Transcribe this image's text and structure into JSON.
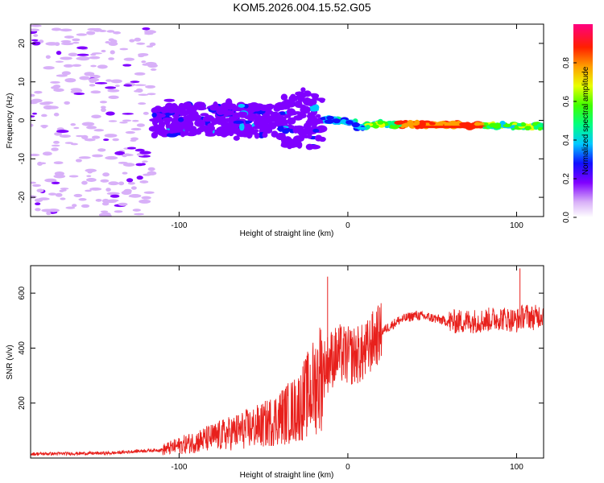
{
  "title": "KOM5.2026.004.15.52.G05",
  "chart_data": [
    {
      "type": "heatmap",
      "name": "spectrogram",
      "xlabel": "Height of straight line (km)",
      "ylabel": "Frequency (Hz)",
      "xlim": [
        -188,
        116
      ],
      "ylim": [
        -25,
        25
      ],
      "xticks": [
        -100,
        0,
        100
      ],
      "yticks": [
        -20,
        -10,
        0,
        10,
        20
      ],
      "colorbar": {
        "label": "Normalized spectral amplitude",
        "range": [
          0,
          1
        ],
        "ticks": [
          "0.0",
          "0.2",
          "0.4",
          "0.6",
          "0.8"
        ]
      },
      "regions": [
        {
          "label": "sparse noise",
          "x": [
            -188,
            -115
          ],
          "y": [
            -25,
            25
          ],
          "amplitude": 0.05
        },
        {
          "label": "broad scatter",
          "x": [
            -115,
            -15
          ],
          "y": [
            -8,
            8
          ],
          "amplitude": 0.2
        },
        {
          "label": "carrier line",
          "x": [
            -15,
            116
          ],
          "y": [
            -2,
            1
          ],
          "amplitude": 0.9
        }
      ]
    },
    {
      "type": "line",
      "name": "snr",
      "xlabel": "Height of straight line (km)",
      "ylabel": "SNR (v/v)",
      "xlim": [
        -188,
        116
      ],
      "ylim": [
        0,
        700
      ],
      "xticks": [
        -100,
        0,
        100
      ],
      "yticks": [
        200,
        400,
        600
      ],
      "color": "#e8201c",
      "series": [
        {
          "name": "SNR",
          "x": [
            -188,
            -140,
            -125,
            -110,
            -90,
            -70,
            -50,
            -30,
            -20,
            -15,
            -10,
            -5,
            0,
            10,
            15,
            20,
            25,
            30,
            40,
            50,
            60,
            80,
            90,
            100,
            105,
            110,
            116
          ],
          "y": [
            15,
            18,
            25,
            30,
            60,
            90,
            120,
            180,
            260,
            320,
            360,
            380,
            370,
            380,
            430,
            460,
            480,
            500,
            520,
            510,
            495,
            500,
            510,
            500,
            520,
            510,
            525
          ]
        }
      ],
      "annotations": [
        {
          "x": -12,
          "y": 660,
          "label": "spike"
        },
        {
          "x": 102,
          "y": 690,
          "label": "spike"
        }
      ]
    }
  ]
}
